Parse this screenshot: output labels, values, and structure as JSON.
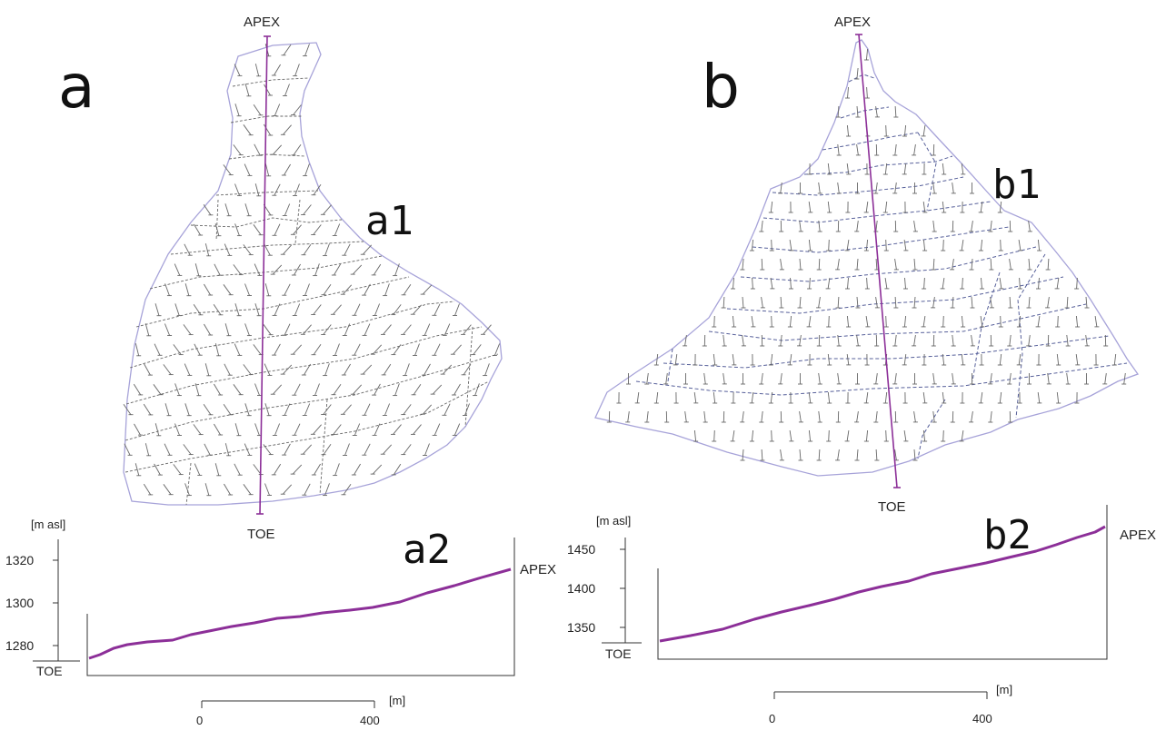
{
  "panel_a": {
    "letter": "a",
    "map_label": "a1",
    "profile_label": "a2",
    "apex": "APEX",
    "toe": "TOE",
    "profile": {
      "unit": "[m asl]",
      "y_ticks": [
        "1320",
        "1300",
        "1280"
      ],
      "toe_label": "TOE",
      "apex_label": "APEX"
    },
    "scale": {
      "unit": "[m]",
      "start": "0",
      "end": "400"
    }
  },
  "panel_b": {
    "letter": "b",
    "map_label": "b1",
    "profile_label": "b2",
    "apex": "APEX",
    "toe": "TOE",
    "profile": {
      "unit": "[m asl]",
      "y_ticks": [
        "1450",
        "1400",
        "1350"
      ],
      "toe_label": "TOE",
      "apex_label": "APEX"
    },
    "scale": {
      "unit": "[m]",
      "start": "0",
      "end": "400"
    }
  },
  "colors": {
    "section_line": "#8c2f98",
    "fan_outline": "#a7a3d9",
    "contours": "#666666"
  }
}
